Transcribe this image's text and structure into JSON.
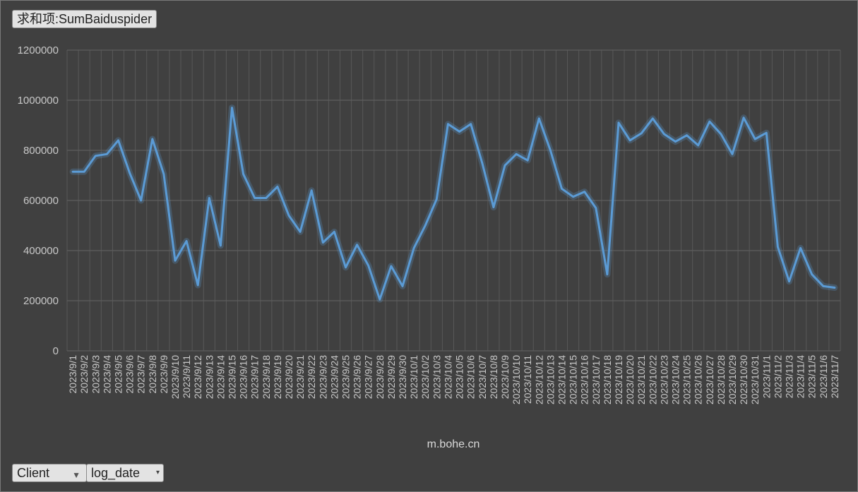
{
  "value_field_label": "求和项:SumBaiduspider",
  "filter_buttons": [
    {
      "label": "Client",
      "icon": "filter-icon"
    },
    {
      "label": "log_date",
      "icon": "dropdown-arrow-icon"
    }
  ],
  "chart_data": {
    "type": "line",
    "title": "",
    "xlabel": "m.bohe.cn",
    "ylabel": "",
    "ylim": [
      0,
      1200000
    ],
    "yticks": [
      0,
      200000,
      400000,
      600000,
      800000,
      1000000,
      1200000
    ],
    "grid": true,
    "line_color": "#5b9bd5",
    "categories": [
      "2023/9/1",
      "2023/9/2",
      "2023/9/3",
      "2023/9/4",
      "2023/9/5",
      "2023/9/6",
      "2023/9/7",
      "2023/9/8",
      "2023/9/9",
      "2023/9/10",
      "2023/9/11",
      "2023/9/12",
      "2023/9/13",
      "2023/9/14",
      "2023/9/15",
      "2023/9/16",
      "2023/9/17",
      "2023/9/18",
      "2023/9/19",
      "2023/9/20",
      "2023/9/21",
      "2023/9/22",
      "2023/9/23",
      "2023/9/24",
      "2023/9/25",
      "2023/9/26",
      "2023/9/27",
      "2023/9/28",
      "2023/9/29",
      "2023/9/30",
      "2023/10/1",
      "2023/10/2",
      "2023/10/3",
      "2023/10/4",
      "2023/10/5",
      "2023/10/6",
      "2023/10/7",
      "2023/10/8",
      "2023/10/9",
      "2023/10/10",
      "2023/10/11",
      "2023/10/12",
      "2023/10/13",
      "2023/10/14",
      "2023/10/15",
      "2023/10/16",
      "2023/10/17",
      "2023/10/18",
      "2023/10/19",
      "2023/10/20",
      "2023/10/21",
      "2023/10/22",
      "2023/10/23",
      "2023/10/24",
      "2023/10/25",
      "2023/10/26",
      "2023/10/27",
      "2023/10/28",
      "2023/10/29",
      "2023/10/30",
      "2023/10/31",
      "2023/11/1",
      "2023/11/2",
      "2023/11/3",
      "2023/11/4",
      "2023/11/5",
      "2023/11/6",
      "2023/11/7"
    ],
    "values": [
      715000,
      715000,
      778000,
      785000,
      840000,
      710000,
      600000,
      845000,
      705000,
      360000,
      438000,
      262000,
      610000,
      420000,
      970000,
      705000,
      610000,
      610000,
      655000,
      540000,
      475000,
      640000,
      432000,
      475000,
      333000,
      423000,
      340000,
      205000,
      338000,
      258000,
      410000,
      500000,
      605000,
      905000,
      875000,
      905000,
      750000,
      573000,
      740000,
      785000,
      760000,
      927000,
      800000,
      647000,
      615000,
      635000,
      570000,
      305000,
      910000,
      840000,
      868000,
      927000,
      865000,
      835000,
      860000,
      820000,
      915000,
      865000,
      785000,
      930000,
      845000,
      870000,
      415000,
      277000,
      410000,
      305000,
      258000,
      252000
    ]
  }
}
